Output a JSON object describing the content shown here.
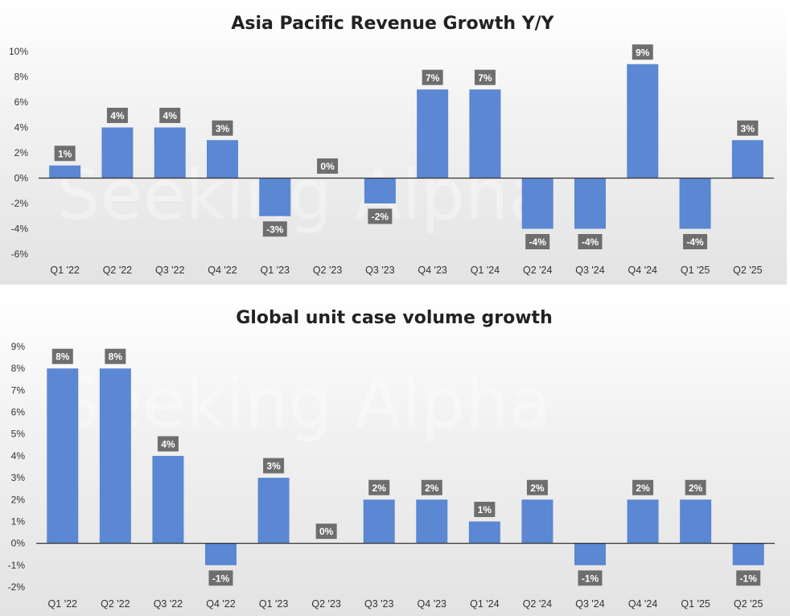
{
  "watermark": "Seeking Alpha",
  "colors": {
    "bar": "#5b87d3",
    "label_box": "#6e6e6e",
    "axis": "#333333"
  },
  "chart_data": [
    {
      "type": "bar",
      "title": "Asia Pacific Revenue Growth Y/Y",
      "categories": [
        "Q1 '22",
        "Q2 '22",
        "Q3 '22",
        "Q4 '22",
        "Q1 '23",
        "Q2 '23",
        "Q3 '23",
        "Q4 '23",
        "Q1 '24",
        "Q2 '24",
        "Q3 '24",
        "Q4 '24",
        "Q1 '25",
        "Q2 '25"
      ],
      "values": [
        1,
        4,
        4,
        3,
        -3,
        0,
        -2,
        7,
        7,
        -4,
        -4,
        9,
        -4,
        3
      ],
      "data_labels": [
        "1%",
        "4%",
        "4%",
        "3%",
        "-3%",
        "0%",
        "-2%",
        "7%",
        "7%",
        "-4%",
        "-4%",
        "9%",
        "-4%",
        "3%"
      ],
      "ylim": [
        -6,
        10
      ],
      "yticks": [
        "10%",
        "8%",
        "6%",
        "4%",
        "2%",
        "0%",
        "-2%",
        "-4%",
        "-6%"
      ],
      "xlabel": "",
      "ylabel": "",
      "grid": false,
      "legend": "none"
    },
    {
      "type": "bar",
      "title": "Global unit case volume growth",
      "categories": [
        "Q1 '22",
        "Q2 '22",
        "Q3 '22",
        "Q4 '22",
        "Q1 '23",
        "Q2 '23",
        "Q3 '23",
        "Q4 '23",
        "Q1 '24",
        "Q2 '24",
        "Q3 '24",
        "Q4 '24",
        "Q1 '25",
        "Q2 '25"
      ],
      "values": [
        8,
        8,
        4,
        -1,
        3,
        0,
        2,
        2,
        1,
        2,
        -1,
        2,
        2,
        -1
      ],
      "data_labels": [
        "8%",
        "8%",
        "4%",
        "-1%",
        "3%",
        "0%",
        "2%",
        "2%",
        "1%",
        "2%",
        "-1%",
        "2%",
        "2%",
        "-1%"
      ],
      "ylim": [
        -2,
        9
      ],
      "yticks": [
        "9%",
        "8%",
        "7%",
        "6%",
        "5%",
        "4%",
        "3%",
        "2%",
        "1%",
        "0%",
        "-1%",
        "-2%"
      ],
      "xlabel": "",
      "ylabel": "",
      "grid": false,
      "legend": "none"
    }
  ]
}
